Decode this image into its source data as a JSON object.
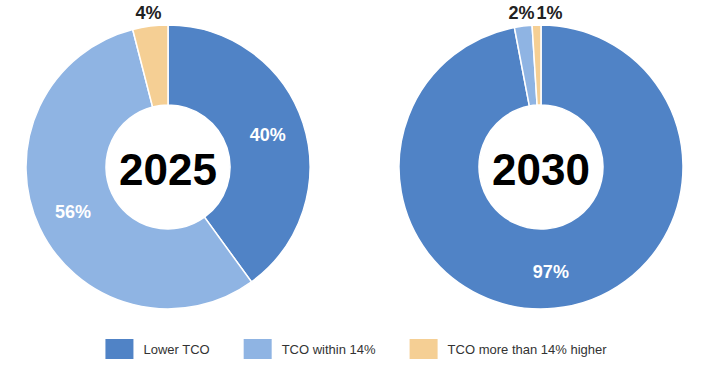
{
  "chart_data": {
    "type": "pie",
    "categories": [
      "Lower TCO",
      "TCO within 14%",
      "TCO more than 14% higher"
    ],
    "colors": [
      "#5083c6",
      "#8fb4e3",
      "#f5cf94"
    ],
    "series": [
      {
        "name": "2025",
        "values": [
          40,
          56,
          4
        ],
        "value_labels": [
          "40%",
          "56%",
          "4%"
        ]
      },
      {
        "name": "2030",
        "values": [
          97,
          2,
          1
        ],
        "value_labels": [
          "97%",
          "2%",
          "1%"
        ]
      }
    ],
    "data_labels": true,
    "legend": "bottom"
  }
}
